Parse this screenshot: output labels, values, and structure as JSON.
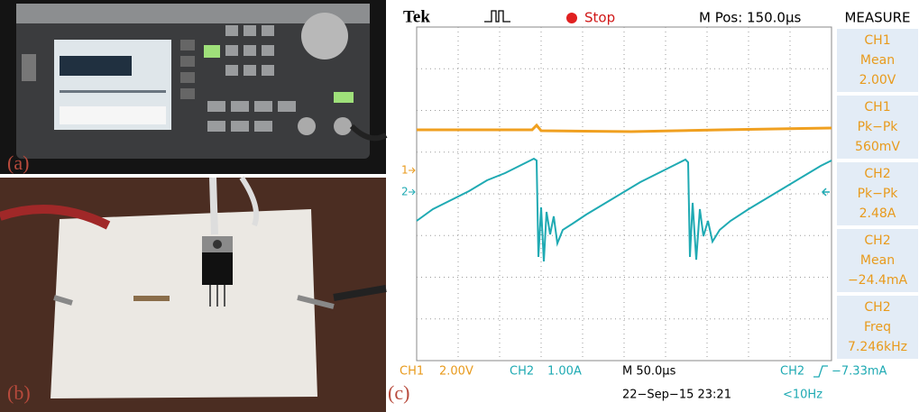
{
  "panels": {
    "a": "(a)",
    "b": "(b)",
    "c": "(c)"
  },
  "scope": {
    "brand": "Tek",
    "state": "Stop",
    "position": "M Pos: 150.0µs",
    "measure_title": "MEASURE",
    "measurements": [
      [
        "CH1",
        "Mean",
        "2.00V"
      ],
      [
        "CH1",
        "Pk−Pk",
        "560mV"
      ],
      [
        "CH2",
        "Pk−Pk",
        "2.48A"
      ],
      [
        "CH2",
        "Mean",
        "−24.4mA"
      ],
      [
        "CH2",
        "Freq",
        "7.246kHz"
      ]
    ],
    "channel_markers": [
      "1",
      "2"
    ],
    "status": {
      "ch1_label": "CH1",
      "ch1_scale": "2.00V",
      "ch2_label": "CH2",
      "ch2_scale": "1.00A",
      "timebase": "M 50.0µs",
      "trigger_channel": "CH2",
      "trigger_level": "−7.33mA",
      "datetime": "22−Sep−15 23:21",
      "frequency": "<10Hz"
    }
  }
}
